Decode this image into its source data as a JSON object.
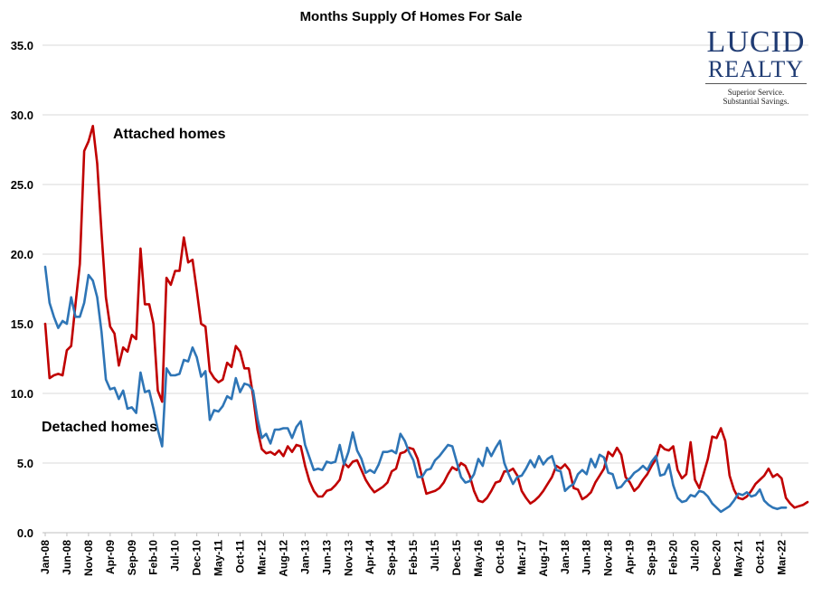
{
  "chart_data": {
    "type": "line",
    "title": "Months Supply Of Homes For Sale",
    "xlabel": "",
    "ylabel": "",
    "ylim": [
      0,
      35
    ],
    "yticks": [
      "0.0",
      "5.0",
      "10.0",
      "15.0",
      "20.0",
      "25.0",
      "30.0",
      "35.0"
    ],
    "ytick_values": [
      0,
      5,
      10,
      15,
      20,
      25,
      30,
      35
    ],
    "grid": true,
    "x_tick_labels": [
      "Jan-08",
      "Jun-08",
      "Nov-08",
      "Apr-09",
      "Sep-09",
      "Feb-10",
      "Jul-10",
      "Dec-10",
      "May-11",
      "Oct-11",
      "Mar-12",
      "Aug-12",
      "Jan-13",
      "Jun-13",
      "Nov-13",
      "Apr-14",
      "Sep-14",
      "Feb-15",
      "Jul-15",
      "Dec-15",
      "May-16",
      "Oct-16",
      "Mar-17",
      "Aug-17",
      "Jan-18",
      "Jun-18",
      "Nov-18",
      "Apr-19",
      "Sep-19",
      "Feb-20",
      "Jul-20",
      "Dec-20",
      "May-21",
      "Oct-21",
      "Mar-22"
    ],
    "tick_interval_months": 5,
    "x_start": "Jan-08",
    "series": [
      {
        "name": "Attached homes",
        "color": "#c00000",
        "values": [
          15.0,
          11.1,
          11.3,
          11.4,
          11.3,
          13.1,
          13.4,
          16.4,
          19.3,
          27.4,
          28.1,
          29.2,
          26.5,
          21.5,
          16.9,
          14.8,
          14.3,
          12.0,
          13.3,
          13.0,
          14.2,
          13.9,
          20.4,
          16.4,
          16.4,
          15.0,
          10.2,
          9.4,
          18.3,
          17.8,
          18.8,
          18.8,
          21.2,
          19.4,
          19.6,
          17.4,
          15.0,
          14.8,
          11.6,
          11.1,
          10.8,
          11.0,
          12.2,
          11.9,
          13.4,
          13.0,
          11.8,
          11.8,
          9.8,
          7.4,
          6.0,
          5.7,
          5.8,
          5.6,
          5.9,
          5.5,
          6.2,
          5.8,
          6.3,
          6.2,
          4.8,
          3.7,
          3.0,
          2.6,
          2.6,
          3.0,
          3.1,
          3.4,
          3.8,
          5.0,
          4.7,
          5.1,
          5.2,
          4.5,
          3.8,
          3.3,
          2.9,
          3.1,
          3.3,
          3.6,
          4.4,
          4.6,
          5.7,
          5.8,
          6.1,
          6.0,
          5.3,
          4.0,
          2.8,
          2.9,
          3.0,
          3.2,
          3.6,
          4.2,
          4.7,
          4.5,
          5.0,
          4.8,
          4.1,
          3.0,
          2.3,
          2.2,
          2.5,
          3.0,
          3.6,
          3.7,
          4.4,
          4.4,
          4.6,
          4.1,
          3.0,
          2.5,
          2.1,
          2.3,
          2.6,
          3.0,
          3.5,
          4.0,
          4.8,
          4.6,
          4.9,
          4.5,
          3.2,
          3.1,
          2.4,
          2.6,
          2.9,
          3.6,
          4.1,
          4.6,
          5.8,
          5.5,
          6.1,
          5.6,
          4.0,
          3.6,
          3.0,
          3.3,
          3.8,
          4.2,
          4.8,
          5.3,
          6.3,
          6.0,
          5.9,
          6.2,
          4.5,
          3.9,
          4.2,
          6.5,
          3.8,
          3.2,
          4.2,
          5.3,
          6.9,
          6.8,
          7.5,
          6.6,
          4.1,
          3.1,
          2.5,
          2.4,
          2.6,
          3.0,
          3.5,
          3.8,
          4.1,
          4.6,
          4.0,
          4.2,
          3.9,
          2.5,
          2.1,
          1.8,
          1.9,
          2.0,
          2.2
        ]
      },
      {
        "name": "Detached homes",
        "color": "#2e75b6",
        "values": [
          19.1,
          16.5,
          15.5,
          14.7,
          15.2,
          15.0,
          16.9,
          15.5,
          15.5,
          16.5,
          18.5,
          18.1,
          16.9,
          14.4,
          11.0,
          10.3,
          10.4,
          9.6,
          10.2,
          8.9,
          9.0,
          8.6,
          11.5,
          10.1,
          10.2,
          8.9,
          7.4,
          6.2,
          11.8,
          11.3,
          11.3,
          11.4,
          12.4,
          12.3,
          13.3,
          12.6,
          11.2,
          11.6,
          8.1,
          8.8,
          8.7,
          9.1,
          9.8,
          9.6,
          11.1,
          10.1,
          10.7,
          10.6,
          10.2,
          8.2,
          6.8,
          7.1,
          6.4,
          7.4,
          7.4,
          7.5,
          7.5,
          6.8,
          7.6,
          8.0,
          6.3,
          5.4,
          4.5,
          4.6,
          4.5,
          5.1,
          5.0,
          5.1,
          6.3,
          4.9,
          5.8,
          7.2,
          5.9,
          5.3,
          4.3,
          4.5,
          4.3,
          4.9,
          5.8,
          5.8,
          5.9,
          5.7,
          7.1,
          6.6,
          5.8,
          5.2,
          4.0,
          4.0,
          4.5,
          4.6,
          5.2,
          5.5,
          5.9,
          6.3,
          6.2,
          5.1,
          4.0,
          3.6,
          3.7,
          4.2,
          5.3,
          4.8,
          6.1,
          5.5,
          6.1,
          6.6,
          5.0,
          4.2,
          3.5,
          4.0,
          4.1,
          4.6,
          5.2,
          4.7,
          5.5,
          4.9,
          5.3,
          5.5,
          4.5,
          4.4,
          3.0,
          3.3,
          3.5,
          4.2,
          4.5,
          4.2,
          5.3,
          4.7,
          5.6,
          5.4,
          4.3,
          4.2,
          3.2,
          3.3,
          3.7,
          3.9,
          4.3,
          4.5,
          4.8,
          4.5,
          5.1,
          5.5,
          4.1,
          4.2,
          4.9,
          3.4,
          2.5,
          2.2,
          2.3,
          2.7,
          2.6,
          3.0,
          2.9,
          2.6,
          2.1,
          1.8,
          1.5,
          1.7,
          1.9,
          2.3,
          2.8,
          2.7,
          2.9,
          2.6,
          2.7,
          3.1,
          2.3,
          2.0,
          1.8,
          1.7,
          1.8,
          1.8
        ]
      }
    ],
    "annotations": {
      "attached_label": "Attached homes",
      "detached_label": "Detached homes"
    }
  },
  "logo": {
    "line1": "LUCID",
    "line2": "REALTY",
    "tagline1": "Superior Service.",
    "tagline2": "Substantial Savings."
  }
}
